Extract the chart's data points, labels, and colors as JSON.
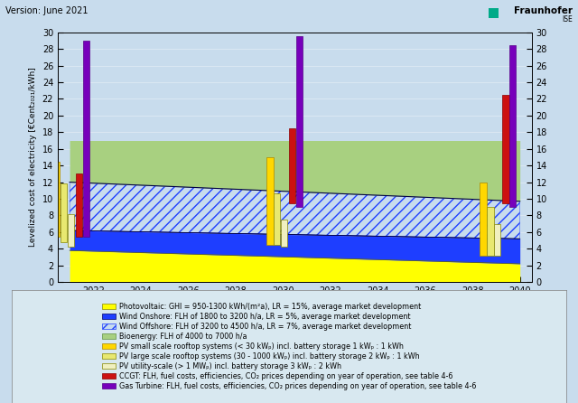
{
  "title": "Version: June 2021",
  "ylabel": "Levelized cost of electricity [€Cent₂₀₂₁/kWh]",
  "xlim": [
    2020.5,
    2040.5
  ],
  "ylim": [
    0,
    30
  ],
  "yticks": [
    0,
    2,
    4,
    6,
    8,
    10,
    12,
    14,
    16,
    18,
    20,
    22,
    24,
    26,
    28,
    30
  ],
  "xticks": [
    2022,
    2024,
    2026,
    2028,
    2030,
    2032,
    2034,
    2036,
    2038,
    2040
  ],
  "bg_color": "#c8dced",
  "plot_bg_color": "#c8dced",
  "pv_bottom_2021": 0.0,
  "pv_bottom_2040": 0.0,
  "pv_top_2021": 3.8,
  "pv_top_2040": 2.2,
  "wind_onshore_bottom_2021": 3.8,
  "wind_onshore_bottom_2040": 2.2,
  "wind_onshore_top_2021": 6.2,
  "wind_onshore_top_2040": 5.2,
  "wind_offshore_bottom_2021": 6.2,
  "wind_offshore_bottom_2040": 5.2,
  "wind_offshore_top_2021": 12.0,
  "wind_offshore_top_2040": 9.7,
  "bioenergy_top": 17.0,
  "pv_color": "#ffff00",
  "wind_onshore_color": "#1e3eff",
  "wind_offshore_face": "#c8dced",
  "wind_offshore_edge": "#1e3eff",
  "bioenergy_color": "#a8d080",
  "x_start": 2021,
  "x_end": 2040,
  "pv_small_color": "#ffd700",
  "pv_large_color": "#e8e870",
  "pv_utility_color": "#f0f0c0",
  "ccgt_color": "#cc1111",
  "gas_turbine_color": "#7700bb",
  "bars": {
    "pv_small": {
      "years": [
        2021,
        2030,
        2039
      ],
      "low": [
        5.5,
        4.5,
        3.2
      ],
      "high": [
        14.5,
        15.0,
        12.0
      ]
    },
    "pv_large": {
      "years": [
        2021,
        2030,
        2039
      ],
      "low": [
        4.8,
        4.5,
        3.2
      ],
      "high": [
        11.8,
        10.7,
        9.0
      ]
    },
    "pv_utility": {
      "years": [
        2021,
        2030,
        2039
      ],
      "low": [
        4.2,
        4.2,
        3.2
      ],
      "high": [
        8.2,
        7.5,
        7.0
      ]
    },
    "ccgt": {
      "years": [
        2021,
        2030,
        2039
      ],
      "low": [
        5.5,
        9.5,
        9.5
      ],
      "high": [
        13.0,
        18.5,
        22.5
      ]
    },
    "gas_turbine": {
      "years": [
        2021,
        2030,
        2039
      ],
      "low": [
        5.5,
        9.0,
        9.0
      ],
      "high": [
        29.0,
        29.5,
        28.5
      ]
    }
  },
  "bar_offsets": {
    "pv_small": -0.55,
    "pv_large": -0.25,
    "pv_utility": 0.05,
    "ccgt": 0.4,
    "gas_turbine": 0.7
  },
  "bar_width": 0.28,
  "legend_labels": [
    "Photovoltaic: GHI = 950-1300 kWh/(m²a), LR = 15%, average market development",
    "Wind Onshore: FLH of 1800 to 3200 h/a, LR = 5%, average market development",
    "Wind Offshore: FLH of 3200 to 4500 h/a, LR = 7%, average market development",
    "Bioenergy: FLH of 4000 to 7000 h/a",
    "PV small scale rooftop systems (< 30 kWₚ) incl. battery storage 1 kWₚ : 1 kWh",
    "PV large scale rooftop systems (30 - 1000 kWₚ) incl. battery storage 2 kWₚ : 1 kWh",
    "PV utility-scale (> 1 MWₚ) incl. battery storage 3 kWₚ : 2 kWh",
    "CCGT: FLH, fuel costs, efficiencies, CO₂ prices depending on year of operation, see table 4-6",
    "Gas Turbine: FLH, fuel costs, efficiencies, CO₂ prices depending on year of operation, see table 4-6"
  ]
}
